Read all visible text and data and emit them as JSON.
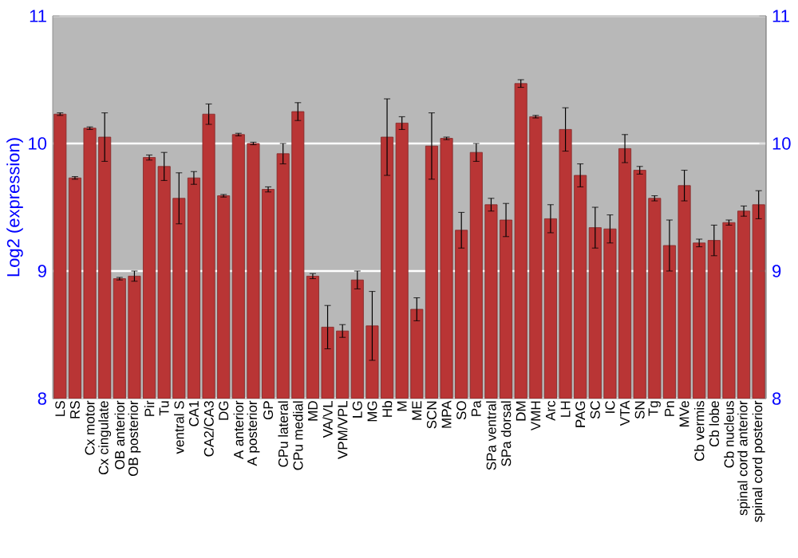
{
  "chart_data": {
    "type": "bar",
    "ylabel": "Log2 (expression)",
    "categories": [
      "LS",
      "RS",
      "Cx motor",
      "Cx cingulate",
      "OB anterior",
      "OB posterior",
      "Pir",
      "Tu",
      "ventral S",
      "CA1",
      "CA2/CA3",
      "DG",
      "A anterior",
      "A posterior",
      "GP",
      "CPu lateral",
      "CPu medial",
      "MD",
      "VA/VL",
      "VPM/VPL",
      "LG",
      "MG",
      "Hb",
      "M",
      "ME",
      "SCN",
      "MPA",
      "SO",
      "Pa",
      "SPa ventral",
      "SPa dorsal",
      "DM",
      "VMH",
      "Arc",
      "LH",
      "PAG",
      "SC",
      "IC",
      "VTA",
      "SN",
      "Tg",
      "Pn",
      "MVe",
      "Cb vermis",
      "Cb lobe",
      "Cb nucleus",
      "spinal cord anterior",
      "spinal cord posterior"
    ],
    "values": [
      10.23,
      9.73,
      10.12,
      10.05,
      8.94,
      8.96,
      9.89,
      9.82,
      9.57,
      9.73,
      10.23,
      9.59,
      10.07,
      10.0,
      9.64,
      9.92,
      10.25,
      8.96,
      8.56,
      8.53,
      8.93,
      8.57,
      10.05,
      10.16,
      8.7,
      9.98,
      10.04,
      9.32,
      9.93,
      9.52,
      9.4,
      10.47,
      10.21,
      9.41,
      10.11,
      9.75,
      9.34,
      9.33,
      9.96,
      9.79,
      9.57,
      9.2,
      9.67,
      9.22,
      9.24,
      9.38,
      9.47,
      9.52
    ],
    "errors": [
      0.01,
      0.01,
      0.01,
      0.19,
      0.01,
      0.04,
      0.02,
      0.11,
      0.2,
      0.05,
      0.08,
      0.01,
      0.01,
      0.01,
      0.02,
      0.08,
      0.07,
      0.02,
      0.17,
      0.05,
      0.07,
      0.27,
      0.3,
      0.05,
      0.09,
      0.26,
      0.01,
      0.14,
      0.07,
      0.05,
      0.13,
      0.03,
      0.01,
      0.11,
      0.17,
      0.09,
      0.16,
      0.11,
      0.11,
      0.03,
      0.02,
      0.2,
      0.12,
      0.03,
      0.12,
      0.02,
      0.04,
      0.11
    ],
    "color": "#b93535",
    "ylim": [
      8,
      11
    ],
    "yticks": [
      8,
      9,
      10,
      11
    ],
    "y2lim": [
      8,
      11
    ],
    "y2ticks": [
      8,
      9,
      10,
      11
    ],
    "grid": "y"
  }
}
